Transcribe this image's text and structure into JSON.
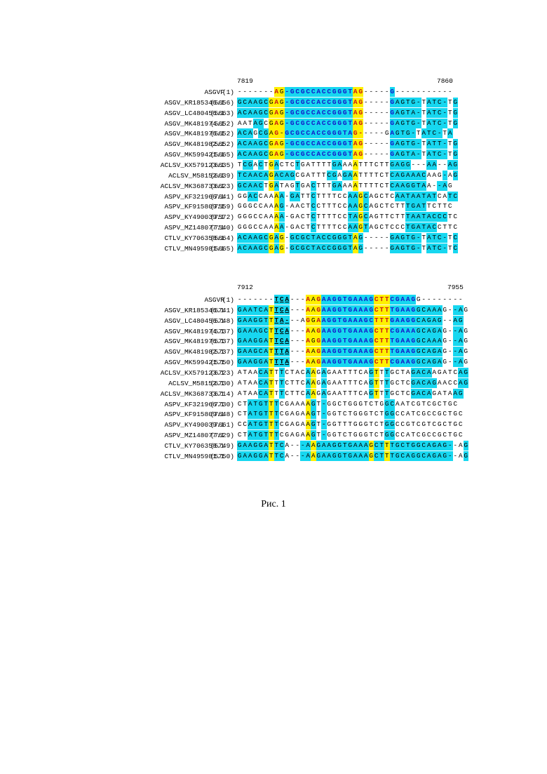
{
  "figure_caption": "Рис. 1",
  "alignments": [
    {
      "id": "asgvf",
      "ruler": {
        "start": "7819",
        "end": "7860"
      },
      "rows": [
        {
          "name": "ASGVF",
          "pos": "(1)",
          "seq": "-------AG-GCGCCACCGGGTAG-----G-----------",
          "style": "-------ryBbbbbbbbbbbbbYr-----b-----------"
        },
        {
          "name": "ASGV_KR185346.1",
          "pos": "(5656)",
          "seq": "GCAAGCGAG-GCGCCACCGGGTAG-----GAGTG-TATC-TG",
          "style": "ccccccyRyBbbbbbbbbbbbbYr-----Bccccc-cccc-cc"
        },
        {
          "name": "ASGV_LC480456.1",
          "pos": "(5663)",
          "seq": "ACAAGCGAG-GCGCCACCGGGTAG-----GAGTA-TATC-TG",
          "style": "ccccccyRyBbbbbbbbbbbbbYr-----Bccccc-cccc-cc"
        },
        {
          "name": "ASGV_MK481974.1",
          "pos": "(5652)",
          "seq": "AATAGCGAG-GCGCCACCGGGTAG-----GAGTG-TATC-TG",
          "style": "nnnccnyRyBbbbbbbbbbbbbYr-----Bccccc-cccc-cc"
        },
        {
          "name": "ASGV_MK481976.1",
          "pos": "(5652)",
          "seq": "ACAGCGAG-GCGCCACCGGGTAG-----GAGTG-TATC-TA",
          "style": "cccnccyRyBbbbbbbbbbbbbYr-----Bcccc-cccc-cn"
        },
        {
          "name": "ASGV_MK481982.1",
          "pos": "(5652)",
          "seq": "ACAAGCGAG-GCGCCACCGGGTAG-----GAGTG-TATT-TG",
          "style": "ccccccyRyBbbbbbbbbbbbbYr-----Bccccc-cccc-cc"
        },
        {
          "name": "ASGV_MK599421.1",
          "pos": "(5665)",
          "seq": "ACAAGCGAG-GCGCCACCGGGTAG-----GAGTA-TATC-TG",
          "style": "ccccccyRyBbbbbbbbbbbbbYr-----Bccccc-cccc-cc"
        },
        {
          "name": "ACLSV_KX579123.1",
          "pos": "(6635)",
          "seq": "TCGACTGACTCTGATTTTGAAAATTTCTTGAGG---AA--AG",
          "style": "nccncnycnnncnnnnnnccnnynnnnnncccc---cc--cc"
        },
        {
          "name": "ACLSV_M58152.1",
          "pos": "(6639)",
          "seq": "TCAACAGACAGCGATTTCGAGAATTTTCTCAGAAACAAG-AG",
          "style": "ccccccyccccnnnnnnccnccynnnnnncccccccnnnc-cc"
        },
        {
          "name": "ACLSV_MK368733.1",
          "pos": "(6623)",
          "seq": "GCAACTGATAGTGACTTTGAAAATTTTCTCAAGGTAA--AG",
          "style": "cccccnycnnncnncnnnccnnynnnnnnccccccc--cc"
        },
        {
          "name": "ASPV_KF321966.1",
          "pos": "(7641)",
          "seq": "GGACCAAAA-GATTCTTTTCCAAGCAGCTCAATAATATCATC",
          "style": "nnccnnnyc-ccnncnnnnnnccycnnnnnccccccccnncc"
        },
        {
          "name": "ASPV_KF915809.1",
          "pos": "(7559)",
          "seq": "GGGCCAAAG-AACTCCTTTCCAAGCAGCTCTTTGATTCTTC",
          "style": "nnnnnnnyc-nnnncnnnnnnccycnnnnnnnccccnnnnn"
        },
        {
          "name": "ASPV_KY490039.1",
          "pos": "(7572)",
          "seq": "GGGCCAAAA-GACTCTTTTCCTAGCAGTTCTTTAATACCCTC",
          "style": "nnnnnnnyc-nnnncnnnnnnccycnnnnnnnccccccccnn"
        },
        {
          "name": "ASPV_MZ148077.1",
          "pos": "(7540)",
          "seq": "GGGCCAAAA-GACTCTTTTCCAAGTAGCTCCCTGATACCTTC",
          "style": "nnnnnnnyc-nnnncnnnnnnccycnnnnnnnccccccnnnn"
        },
        {
          "name": "CTLV_KY706358.1",
          "pos": "(5664)",
          "seq": "ACAAGCGAG-GCGCTACCGGGTAG-----GAGTG-TATC-TC",
          "style": "ccccccycy-ccccccccccccyc-----cccccc-cccc-cc"
        },
        {
          "name": "CTLV_MN495981.1",
          "pos": "(5665)",
          "seq": "ACAAGCGAG-GCGCTACCGGGTAG-----GAGTG-TATC-TC",
          "style": "ccccccycy-ccccccccccccyc-----cccccc-cccc-cc"
        }
      ]
    },
    {
      "id": "asgvr",
      "ruler": {
        "start": "7912",
        "end": "7955"
      },
      "rows": [
        {
          "name": "ASGVR",
          "pos": "(1)",
          "seq": "-------TCA---AAGAAGGTGAAAGCTTCGAAGG--------",
          "style": "-------UUU---ryRBbbbbbbbbbYrYBbbbb--------"
        },
        {
          "name": "ASGV_KR185346.1",
          "pos": "(5741)",
          "seq": "GAATCATTCA---AAGAAGGTGAAAGCTTTGAAGGCAAAG--AG",
          "style": "ccccccyUUU---RyRBbbbbbbbbbYrYBbbbbccccc--cc"
        },
        {
          "name": "ASGV_LC480456.1",
          "pos": "(5748)",
          "seq": "GAAGGTTTA---AGGAAGGTGAAAGCTTTGAAGGCAGAG--AG",
          "style": "ccccccyUUU---RyRBbbbbbbbbbYrYBbbbbccccc--cc"
        },
        {
          "name": "ASGV_MK481974.1",
          "pos": "(5737)",
          "seq": "GAAAGCTTCA---AAGAAGGTGAAAGCTTCGAAAGCAGAG--AG",
          "style": "ccccccyUUU---RyRBbbbbbbbbbYrYBbbbbccccc--cc"
        },
        {
          "name": "ASGV_MK481976.1",
          "pos": "(5737)",
          "seq": "GAAGGATTCA---AGGAAGGTGAAAGCTTTGAAGGCAAAG--AG",
          "style": "ccccccyUUU---RyRBbbbbbbbbbYrYBbbbbccccc--cc"
        },
        {
          "name": "ASGV_MK481982.1",
          "pos": "(5737)",
          "seq": "GAAGCATTTA---AAGAAGGTGAAAGCTTTGAAGGCAGAG--AG",
          "style": "ccccccyUUU---RyRBbbbbbbbbbYrYBbbbbccccc--cc"
        },
        {
          "name": "ASGV_MK599421.1",
          "pos": "(5750)",
          "seq": "GAAGGATTTA---AAGAAGGTGAAAGCTTCGAAGGCAGAG--AG",
          "style": "ccccccyUUU---RyRBbbbbbbbbbYrYBbbbbccccc--cc"
        },
        {
          "name": "ACLSV_KX579123.1",
          "pos": "(6723)",
          "seq": "ATAACATTTCTACAAGAGAATTTCAGTTTGCTAGACAAGATCAG",
          "style": "nnnnccyncnnnncyncnnnnnnnncyncnnnnccccnnnnncc"
        },
        {
          "name": "ACLSV_M58152.1",
          "pos": "(6730)",
          "seq": "ATAACATTTCTTCAAGAGAATTTCAGTTTGCTCGACAGAACCAG",
          "style": "nnnnccyncnnnncyncnnnnnnnncyncnnnncccccnnnncc"
        },
        {
          "name": "ACLSV_MK368733.1",
          "pos": "(6714)",
          "seq": "ATAACATTTCTTCAAGAGAATTTCAGTTTGCTCGACAGATAAG",
          "style": "nnnnccyncnnnncyncnnnnnnnncyncnnnnccccnnnncc"
        },
        {
          "name": "ASPV_KF321966.1",
          "pos": "(7730)",
          "seq": "CTATGTTTCGAAAAGT-GGCTGGGTCTGGCAATCGTCGCTGC",
          "style": "nnccccycnnnnnyc-cnnnnnnnnnnnccnnnnnnnnnnn"
        },
        {
          "name": "ASPV_KF915809.1",
          "pos": "(7648)",
          "seq": "CTATGTTTCGAGAAGT-GGTCTGGGTCTGGCCATCGCCGCTGC",
          "style": "nnccccycnnnnnyc-cnnnnnnnnnnnccnnnnnnnnnnnn"
        },
        {
          "name": "ASPV_KY490039.1",
          "pos": "(7661)",
          "seq": "CCATGTTTCGAGAAGT-GGTTTGGGTCTGGCCGTCGTCGCTGC",
          "style": "nnccccycnnnnnyc-cnnnnnnnnnnnccnnnnnnnnnnnn"
        },
        {
          "name": "ASPV_MZ148077.1",
          "pos": "(7629)",
          "seq": "CTATGTTTCGAGAAGT-GGTCTGGGTCTGGCCATCGCCGCTGC",
          "style": "nnccccycnnnnnyc-cnnnnnnnnnnnccnnnnnnnnnnnn"
        },
        {
          "name": "CTLV_KY706358.1",
          "pos": "(5749)",
          "seq": "GAAGGATTCA---AAGAAGGTGAAAGCTTTGCTGGCAGAG--AG",
          "style": "ccccccycc---ccyccccccccccyccycccccccccccc--cc"
        },
        {
          "name": "CTLV_MN495981.1",
          "pos": "(5750)",
          "seq": "GAAGGATTCA---AAGAAGGTGAAAGCTTTGCAGGCAGAG--AG",
          "style": "ccccccycc---ccyccccccccccyccycccccccccccc--cc"
        }
      ]
    }
  ]
}
